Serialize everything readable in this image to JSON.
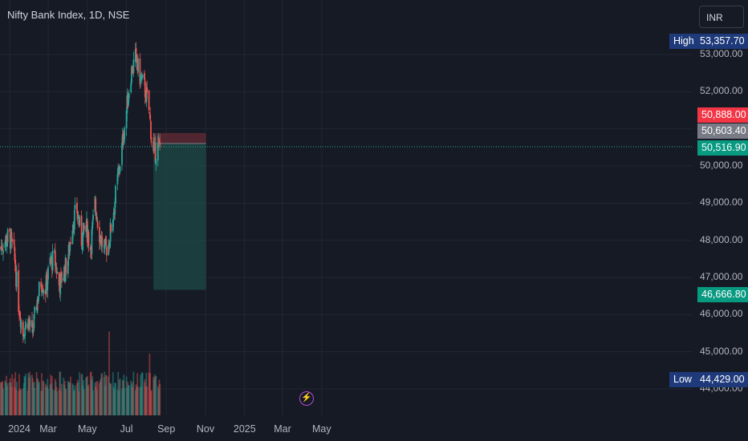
{
  "header": {
    "title": "Nifty Bank Index, 1D, NSE",
    "currency_button": "INR"
  },
  "price_tags": {
    "high_label": "High",
    "high_value": "53,357.70",
    "stop_value": "50,888.00",
    "entry_value": "50,603.40",
    "last_value": "50,516.90",
    "target_value": "46,666.80",
    "low_label": "Low",
    "low_value": "44,429.00"
  },
  "colors": {
    "up": "#26a69a",
    "down": "#ef5350",
    "background": "#161a25",
    "stop_zone": "#5b2a33",
    "target_zone": "#1e4a46"
  },
  "chart_data": {
    "type": "candlestick",
    "title": "Nifty Bank Index, 1D, NSE",
    "y_ticks": [
      44000,
      45000,
      46000,
      47000,
      48000,
      49000,
      50000,
      51000,
      52000,
      53000
    ],
    "y_tick_labels": [
      "44,000.00",
      "45,000.00",
      "46,000.00",
      "47,000.00",
      "48,000.00",
      "49,000.00",
      "50,000.00",
      "51,000.00",
      "52,000.00",
      "53,000.00"
    ],
    "x_tick_labels": [
      "2024",
      "Mar",
      "May",
      "Jul",
      "Sep",
      "Nov",
      "2025",
      "Mar",
      "May"
    ],
    "period_high": 53357.7,
    "period_low": 44429.0,
    "last_price": 50516.9,
    "position": {
      "type": "short",
      "entry": 50603.4,
      "stop_loss": 50888.0,
      "target": 46666.8,
      "start": "2024-08-12",
      "end": "2024-11-02"
    },
    "close_path": [
      {
        "date": "2023-12-18",
        "close": 47800
      },
      {
        "date": "2023-12-25",
        "close": 48000
      },
      {
        "date": "2024-01-01",
        "close": 48100
      },
      {
        "date": "2024-01-08",
        "close": 47600
      },
      {
        "date": "2024-01-15",
        "close": 46300
      },
      {
        "date": "2024-01-22",
        "close": 45500
      },
      {
        "date": "2024-01-29",
        "close": 45900
      },
      {
        "date": "2024-02-05",
        "close": 45400
      },
      {
        "date": "2024-02-12",
        "close": 46300
      },
      {
        "date": "2024-02-19",
        "close": 46900
      },
      {
        "date": "2024-02-26",
        "close": 46700
      },
      {
        "date": "2024-03-04",
        "close": 47400
      },
      {
        "date": "2024-03-11",
        "close": 47500
      },
      {
        "date": "2024-03-18",
        "close": 46800
      },
      {
        "date": "2024-03-25",
        "close": 47100
      },
      {
        "date": "2024-04-01",
        "close": 47500
      },
      {
        "date": "2024-04-08",
        "close": 48500
      },
      {
        "date": "2024-04-15",
        "close": 48800
      },
      {
        "date": "2024-04-22",
        "close": 48000
      },
      {
        "date": "2024-04-29",
        "close": 48400
      },
      {
        "date": "2024-05-06",
        "close": 47800
      },
      {
        "date": "2024-05-13",
        "close": 49000
      },
      {
        "date": "2024-05-20",
        "close": 48200
      },
      {
        "date": "2024-05-27",
        "close": 47700
      },
      {
        "date": "2024-06-03",
        "close": 47900
      },
      {
        "date": "2024-06-10",
        "close": 48700
      },
      {
        "date": "2024-06-17",
        "close": 49600
      },
      {
        "date": "2024-06-24",
        "close": 50500
      },
      {
        "date": "2024-07-01",
        "close": 51500
      },
      {
        "date": "2024-07-08",
        "close": 52500
      },
      {
        "date": "2024-07-15",
        "close": 52900
      },
      {
        "date": "2024-07-22",
        "close": 52400
      },
      {
        "date": "2024-07-29",
        "close": 52100
      },
      {
        "date": "2024-08-05",
        "close": 51500
      },
      {
        "date": "2024-08-12",
        "close": 50300
      },
      {
        "date": "2024-08-19",
        "close": 50500
      }
    ],
    "volume_spikes": [
      {
        "date": "2024-06-04",
        "relative": 0.95
      },
      {
        "date": "2024-08-06",
        "relative": 0.7
      }
    ]
  }
}
